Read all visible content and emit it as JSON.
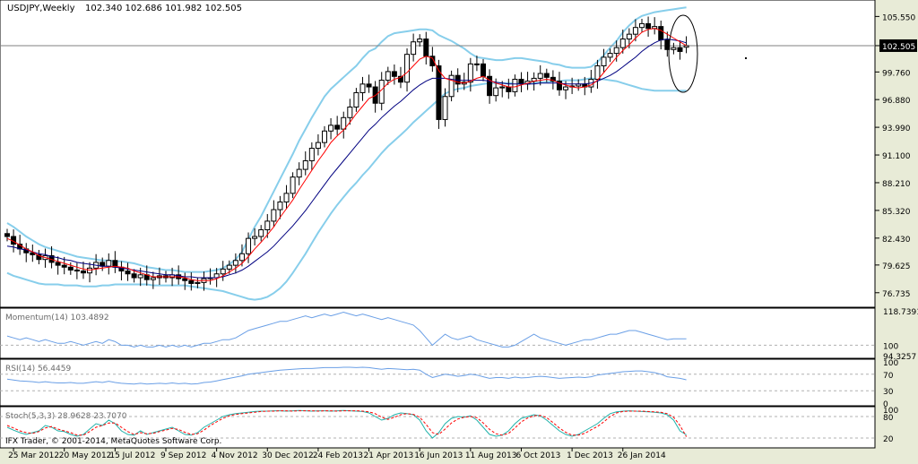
{
  "header": {
    "symbol": "USDJPY,Weekly",
    "ohlc": "102.340 102.686 101.982 102.505"
  },
  "colors": {
    "background": "#ffffff",
    "panel_background": "#ffffff",
    "candle": "#000000",
    "bollinger": "#87ceeb",
    "ma_fast": "#ff0000",
    "ma_slow": "#000080",
    "indicator_line": "#6a9fe6",
    "stoch_main": "#20b2aa",
    "stoch_signal": "#ff0000",
    "current_price_line": "#808080"
  },
  "copyright": "IFX Trader, © 2001-2014, MetaQuotes Software Corp.",
  "chart_data": [
    {
      "type": "candlestick",
      "title": "USDJPY,Weekly",
      "ohlc_label": "102.340 102.686 101.982 102.505",
      "ylim": [
        75.5,
        106.8
      ],
      "y_ticks": [
        "105.550",
        "102.505",
        "99.760",
        "96.880",
        "93.990",
        "91.100",
        "88.210",
        "85.320",
        "82.430",
        "79.625",
        "76.735"
      ],
      "current_price": 102.505,
      "x_ticks": [
        "25 Mar 2012",
        "20 May 2012",
        "15 Jul 2012",
        "9 Sep 2012",
        "4 Nov 2012",
        "30 Dec 2012",
        "24 Feb 2013",
        "21 Apr 2013",
        "16 Jun 2013",
        "11 Aug 2013",
        "6 Oct 2013",
        "1 Dec 2013",
        "26 Jan 2014"
      ],
      "close": [
        82.6,
        81.8,
        81.3,
        80.9,
        80.7,
        80.2,
        80.6,
        79.9,
        79.6,
        79.4,
        79.1,
        79.0,
        78.8,
        79.3,
        79.9,
        79.5,
        80.1,
        79.4,
        79.0,
        78.7,
        78.3,
        78.6,
        78.1,
        78.3,
        78.5,
        78.3,
        78.6,
        78.2,
        78.0,
        77.7,
        77.8,
        78.2,
        78.3,
        78.7,
        79.2,
        79.6,
        80.1,
        80.8,
        82.4,
        82.6,
        83.3,
        84.2,
        85.4,
        86.2,
        87.1,
        88.8,
        89.6,
        90.5,
        91.8,
        92.4,
        93.6,
        94.2,
        93.8,
        95.0,
        96.1,
        97.6,
        98.5,
        98.2,
        96.5,
        98.9,
        99.8,
        99.3,
        98.7,
        101.6,
        102.9,
        103.2,
        101.4,
        100.4,
        94.8,
        97.2,
        99.4,
        98.5,
        98.7,
        100.6,
        100.6,
        99.3,
        97.3,
        98.1,
        98.2,
        97.7,
        99.0,
        98.5,
        98.8,
        99.1,
        99.6,
        99.2,
        98.8,
        97.9,
        98.2,
        98.3,
        98.5,
        98.2,
        99.0,
        100.4,
        101.3,
        101.7,
        102.3,
        103.2,
        103.7,
        104.4,
        104.8,
        104.3,
        104.5,
        103.1,
        102.1,
        102.3,
        101.9,
        102.505
      ],
      "open": [
        82.9,
        82.6,
        81.8,
        81.3,
        80.9,
        80.7,
        80.2,
        80.6,
        79.9,
        79.6,
        79.4,
        79.1,
        79.0,
        78.8,
        79.3,
        79.9,
        79.5,
        80.1,
        79.4,
        79.0,
        78.7,
        78.3,
        78.6,
        78.1,
        78.3,
        78.5,
        78.3,
        78.6,
        78.2,
        78.0,
        77.7,
        77.8,
        78.2,
        78.3,
        78.7,
        79.2,
        79.6,
        80.1,
        80.8,
        82.4,
        82.6,
        83.3,
        84.2,
        85.4,
        86.2,
        87.1,
        88.8,
        89.6,
        90.5,
        91.8,
        92.4,
        93.6,
        94.2,
        93.8,
        95.0,
        96.1,
        97.6,
        98.5,
        98.2,
        96.5,
        98.9,
        99.8,
        99.3,
        98.7,
        101.6,
        102.9,
        103.2,
        101.4,
        100.4,
        94.8,
        97.2,
        99.4,
        98.5,
        98.7,
        100.6,
        100.6,
        99.3,
        97.3,
        98.1,
        98.2,
        97.7,
        99.0,
        98.5,
        98.8,
        99.1,
        99.6,
        99.2,
        98.8,
        97.9,
        98.2,
        98.3,
        98.5,
        98.2,
        99.0,
        100.4,
        101.3,
        101.7,
        102.3,
        103.2,
        103.7,
        104.4,
        104.8,
        104.3,
        104.5,
        103.1,
        102.1,
        102.3,
        102.34
      ],
      "bb_upper": [
        84.0,
        83.6,
        83.1,
        82.6,
        82.2,
        81.8,
        81.5,
        81.3,
        81.1,
        80.9,
        80.7,
        80.5,
        80.4,
        80.3,
        80.2,
        80.1,
        80.1,
        80.0,
        80.0,
        79.9,
        79.8,
        79.6,
        79.4,
        79.3,
        79.2,
        79.1,
        79.1,
        79.0,
        78.9,
        78.9,
        78.9,
        78.9,
        79.0,
        79.1,
        79.3,
        79.7,
        80.2,
        81.0,
        82.3,
        83.6,
        84.7,
        86.0,
        87.3,
        88.6,
        89.9,
        91.2,
        92.6,
        93.8,
        95.0,
        96.1,
        97.2,
        98.0,
        98.6,
        99.2,
        99.8,
        100.4,
        101.2,
        101.9,
        102.2,
        102.9,
        103.5,
        103.8,
        103.9,
        104.0,
        104.1,
        104.2,
        104.2,
        104.1,
        103.6,
        103.3,
        103.0,
        102.6,
        102.2,
        101.7,
        101.3,
        101.2,
        101.1,
        101.0,
        101.0,
        101.1,
        101.2,
        101.2,
        101.1,
        101.0,
        100.9,
        100.8,
        100.6,
        100.5,
        100.3,
        100.2,
        100.2,
        100.2,
        100.3,
        100.8,
        101.5,
        102.3,
        103.0,
        103.9,
        104.6,
        105.2,
        105.6,
        105.8,
        106.0,
        106.1,
        106.2,
        106.3,
        106.4,
        106.5
      ],
      "bb_lower": [
        78.8,
        78.5,
        78.3,
        78.1,
        77.9,
        77.7,
        77.6,
        77.6,
        77.6,
        77.5,
        77.5,
        77.5,
        77.4,
        77.4,
        77.4,
        77.5,
        77.5,
        77.6,
        77.6,
        77.6,
        77.6,
        77.6,
        77.6,
        77.5,
        77.5,
        77.5,
        77.5,
        77.5,
        77.5,
        77.4,
        77.3,
        77.2,
        77.1,
        77.0,
        76.9,
        76.7,
        76.5,
        76.3,
        76.1,
        76.0,
        76.1,
        76.3,
        76.7,
        77.2,
        77.9,
        78.8,
        79.8,
        80.8,
        81.9,
        83.0,
        84.0,
        85.0,
        85.9,
        86.7,
        87.5,
        88.2,
        89.0,
        89.7,
        90.5,
        91.3,
        92.0,
        92.6,
        93.2,
        93.8,
        94.5,
        95.1,
        95.7,
        96.3,
        96.9,
        97.5,
        97.8,
        98.0,
        98.1,
        98.3,
        98.4,
        98.5,
        98.6,
        98.6,
        98.6,
        98.6,
        98.6,
        98.6,
        98.6,
        98.6,
        98.7,
        98.7,
        98.8,
        98.8,
        98.9,
        98.9,
        98.9,
        99.0,
        99.1,
        99.0,
        99.0,
        98.9,
        98.8,
        98.6,
        98.4,
        98.2,
        98.0,
        97.9,
        97.8,
        97.8,
        97.8,
        97.8,
        97.8,
        97.8
      ],
      "ma_fast": [
        82.4,
        82.1,
        81.7,
        81.3,
        81.0,
        80.6,
        80.4,
        80.2,
        80.0,
        79.8,
        79.6,
        79.4,
        79.2,
        79.1,
        79.2,
        79.3,
        79.4,
        79.5,
        79.4,
        79.3,
        79.0,
        78.8,
        78.6,
        78.4,
        78.4,
        78.4,
        78.4,
        78.4,
        78.3,
        78.1,
        78.0,
        78.0,
        78.0,
        78.2,
        78.5,
        78.9,
        79.3,
        79.8,
        80.5,
        81.3,
        82.0,
        82.8,
        83.6,
        84.6,
        85.5,
        86.4,
        87.5,
        88.5,
        89.5,
        90.5,
        91.4,
        92.4,
        93.1,
        93.7,
        94.5,
        95.4,
        96.2,
        97.0,
        97.3,
        97.9,
        98.6,
        99.0,
        99.2,
        99.7,
        100.4,
        101.1,
        101.4,
        101.2,
        99.9,
        99.1,
        98.9,
        98.7,
        98.6,
        98.8,
        99.1,
        99.3,
        98.9,
        98.6,
        98.4,
        98.2,
        98.2,
        98.4,
        98.6,
        98.8,
        98.9,
        99.0,
        98.9,
        98.6,
        98.4,
        98.2,
        98.1,
        98.2,
        98.4,
        98.9,
        99.7,
        100.5,
        101.3,
        102.0,
        102.6,
        103.3,
        103.9,
        104.2,
        104.3,
        104.1,
        103.7,
        103.3,
        102.9,
        102.5
      ],
      "ma_slow": [
        81.6,
        81.5,
        81.3,
        81.2,
        81.0,
        80.8,
        80.7,
        80.5,
        80.4,
        80.2,
        80.1,
        79.9,
        79.8,
        79.7,
        79.6,
        79.5,
        79.5,
        79.4,
        79.3,
        79.2,
        79.1,
        79.0,
        78.9,
        78.8,
        78.7,
        78.6,
        78.6,
        78.5,
        78.4,
        78.4,
        78.3,
        78.3,
        78.3,
        78.3,
        78.4,
        78.6,
        78.8,
        79.1,
        79.5,
        80.0,
        80.5,
        81.0,
        81.6,
        82.3,
        83.0,
        83.7,
        84.5,
        85.3,
        86.2,
        87.1,
        88.0,
        88.9,
        89.7,
        90.5,
        91.3,
        92.1,
        92.9,
        93.7,
        94.3,
        95.0,
        95.6,
        96.2,
        96.7,
        97.3,
        97.9,
        98.4,
        98.8,
        99.1,
        99.1,
        99.1,
        99.0,
        98.9,
        98.9,
        98.9,
        98.9,
        98.9,
        98.8,
        98.7,
        98.6,
        98.5,
        98.5,
        98.5,
        98.5,
        98.5,
        98.6,
        98.6,
        98.6,
        98.6,
        98.5,
        98.5,
        98.5,
        98.5,
        98.6,
        98.8,
        99.1,
        99.4,
        99.8,
        100.3,
        100.8,
        101.3,
        101.9,
        102.4,
        102.8,
        103.1,
        103.2,
        103.1,
        103.0,
        102.8
      ]
    },
    {
      "type": "line",
      "title": "Momentum(14) 103.4892",
      "y_ticks": [
        "118.7391",
        "100",
        "94.3257"
      ],
      "ylim": [
        94.3257,
        118.7391
      ],
      "values": [
        105,
        104,
        103,
        104,
        103,
        102,
        103,
        102,
        101,
        101,
        102,
        101,
        100,
        101,
        102,
        101,
        103,
        102,
        100,
        100,
        99,
        100,
        99,
        99,
        100,
        99,
        100,
        99,
        100,
        99,
        100,
        101,
        101,
        102,
        103,
        103,
        104,
        106,
        108,
        109,
        110,
        111,
        112,
        113,
        113,
        114,
        115,
        116,
        115,
        116,
        117,
        116,
        117,
        118,
        117,
        116,
        117,
        116,
        115,
        114,
        115,
        114,
        113,
        112,
        111,
        108,
        104,
        100,
        103,
        106,
        104,
        103,
        104,
        105,
        103,
        102,
        101,
        100,
        99,
        99,
        100,
        102,
        104,
        106,
        104,
        103,
        102,
        101,
        100,
        101,
        102,
        103,
        103,
        104,
        105,
        106,
        106,
        107,
        108,
        108,
        107,
        106,
        105,
        104,
        103,
        103.5,
        103.4892,
        103.4892
      ],
      "reference_line": 100
    },
    {
      "type": "line",
      "title": "RSI(14) 56.4459",
      "y_ticks": [
        "100",
        "70",
        "30",
        "0"
      ],
      "ylim": [
        0,
        100
      ],
      "values": [
        58,
        56,
        54,
        53,
        52,
        50,
        52,
        50,
        49,
        49,
        50,
        48,
        48,
        50,
        52,
        50,
        53,
        50,
        48,
        47,
        46,
        48,
        46,
        47,
        48,
        47,
        49,
        47,
        48,
        46,
        47,
        50,
        51,
        54,
        57,
        60,
        63,
        66,
        70,
        72,
        74,
        76,
        78,
        80,
        81,
        82,
        83,
        84,
        84,
        85,
        86,
        86,
        86,
        87,
        87,
        86,
        87,
        86,
        84,
        82,
        84,
        83,
        82,
        81,
        82,
        80,
        70,
        62,
        66,
        70,
        68,
        65,
        67,
        70,
        68,
        64,
        60,
        62,
        62,
        60,
        63,
        61,
        62,
        64,
        65,
        64,
        62,
        60,
        61,
        62,
        63,
        62,
        64,
        68,
        70,
        72,
        74,
        76,
        77,
        78,
        78,
        76,
        74,
        70,
        64,
        62,
        60,
        56.4459
      ],
      "reference_lines": [
        70,
        30
      ]
    },
    {
      "type": "line",
      "title": "Stoch(5,3,3) 28.9628 23.7070",
      "y_ticks": [
        "100",
        "80",
        "20"
      ],
      "ylim": [
        0,
        100
      ],
      "series": [
        {
          "name": "main",
          "values": [
            50,
            42,
            35,
            30,
            35,
            40,
            55,
            50,
            40,
            38,
            30,
            25,
            30,
            45,
            60,
            55,
            70,
            60,
            40,
            30,
            28,
            40,
            30,
            35,
            40,
            45,
            50,
            40,
            30,
            28,
            35,
            50,
            60,
            70,
            80,
            85,
            88,
            90,
            92,
            94,
            95,
            95,
            96,
            96,
            95,
            96,
            97,
            96,
            95,
            96,
            96,
            95,
            96,
            97,
            96,
            95,
            94,
            90,
            80,
            70,
            75,
            85,
            90,
            88,
            85,
            70,
            40,
            20,
            35,
            60,
            75,
            80,
            78,
            82,
            70,
            50,
            30,
            25,
            28,
            40,
            60,
            75,
            80,
            85,
            82,
            70,
            55,
            40,
            30,
            25,
            30,
            40,
            50,
            60,
            75,
            88,
            93,
            95,
            96,
            95,
            94,
            93,
            92,
            90,
            85,
            70,
            40,
            28.9628
          ]
        },
        {
          "name": "signal",
          "values": [
            55,
            48,
            40,
            35,
            33,
            38,
            48,
            52,
            45,
            40,
            35,
            28,
            28,
            38,
            50,
            55,
            62,
            62,
            50,
            38,
            30,
            35,
            32,
            33,
            38,
            42,
            47,
            44,
            36,
            30,
            32,
            42,
            55,
            65,
            75,
            82,
            86,
            88,
            90,
            92,
            94,
            95,
            95,
            96,
            96,
            95,
            96,
            96,
            96,
            95,
            96,
            96,
            95,
            96,
            96,
            96,
            95,
            93,
            88,
            78,
            72,
            78,
            85,
            88,
            86,
            78,
            58,
            35,
            30,
            45,
            62,
            73,
            78,
            80,
            77,
            62,
            44,
            32,
            28,
            33,
            48,
            65,
            76,
            82,
            83,
            77,
            63,
            48,
            36,
            28,
            28,
            33,
            43,
            52,
            65,
            80,
            90,
            94,
            95,
            95,
            95,
            94,
            93,
            92,
            88,
            78,
            55,
            23.707
          ]
        }
      ],
      "reference_lines": [
        80,
        20
      ]
    }
  ]
}
